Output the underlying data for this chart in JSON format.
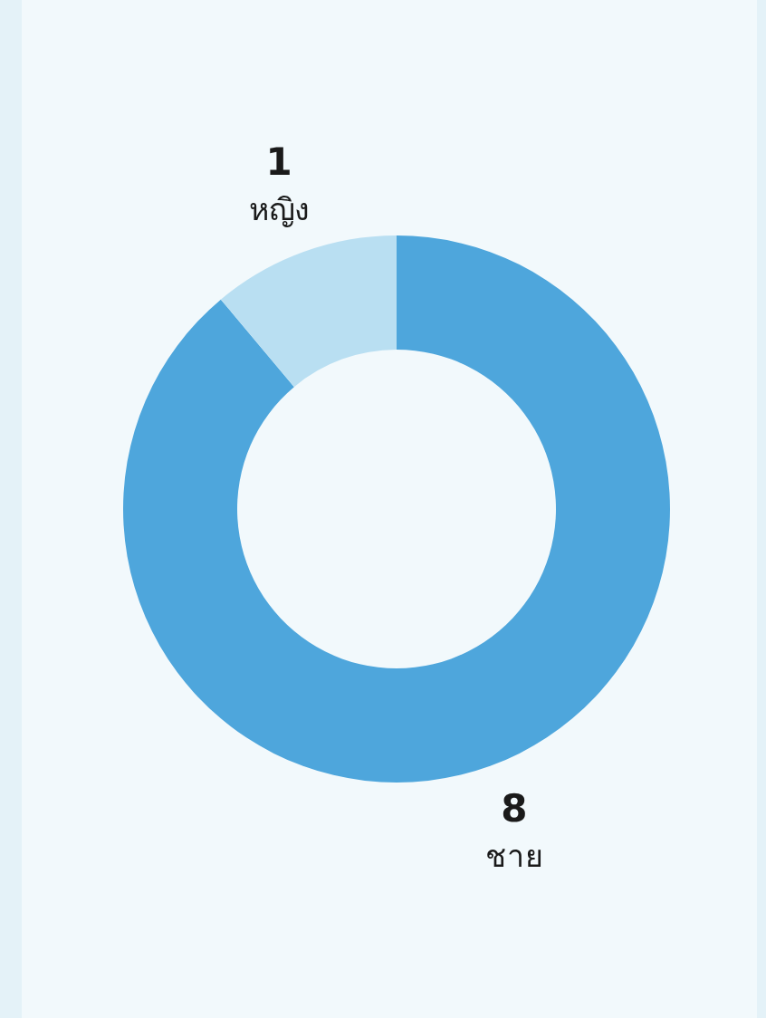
{
  "chart_data": {
    "type": "donut",
    "categories": [
      "ชาย",
      "หญิง"
    ],
    "values": [
      8,
      1
    ],
    "colors": [
      "#4ea6dc",
      "#b9dff2"
    ],
    "data_labels": true
  }
}
